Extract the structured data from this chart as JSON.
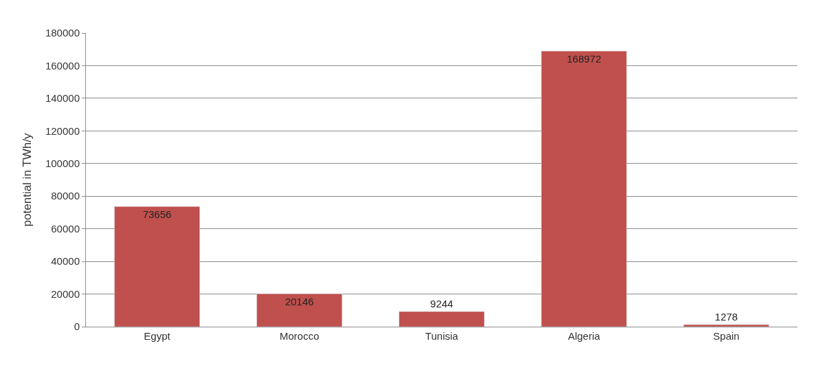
{
  "chart_data": {
    "type": "bar",
    "ylabel": "potential in TWh/y",
    "categories": [
      "Egypt",
      "Morocco",
      "Tunisia",
      "Algeria",
      "Spain"
    ],
    "values": [
      73656,
      20146,
      9244,
      168972,
      1278
    ],
    "color": "#c0504d",
    "ylim": [
      0,
      180000
    ],
    "yticks": [
      0,
      20000,
      40000,
      60000,
      80000,
      100000,
      120000,
      140000,
      160000,
      180000
    ],
    "grid": "y",
    "data_labels": true,
    "legend": false
  }
}
